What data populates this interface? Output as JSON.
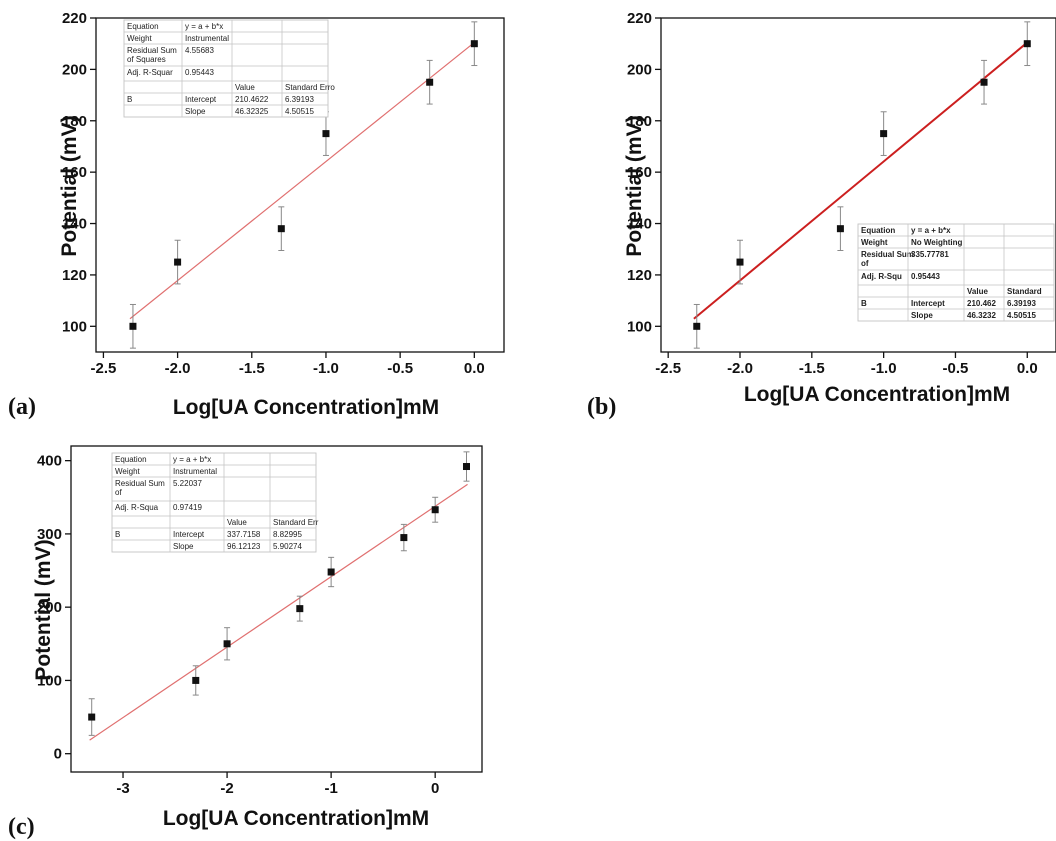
{
  "chart_data": [
    {
      "panel": "(a)",
      "type": "scatter",
      "xlabel": "Log[UA Concentration]mM",
      "ylabel": "Potential (mV)",
      "xlim": [
        -2.55,
        0.2
      ],
      "ylim": [
        90,
        220
      ],
      "xticks": [
        "-2.5",
        "-2.0",
        "-1.5",
        "-1.0",
        "-0.5",
        "0.0"
      ],
      "xtick_values": [
        -2.5,
        -2.0,
        -1.5,
        -1.0,
        -0.5,
        0.0
      ],
      "yticks": [
        "100",
        "120",
        "140",
        "160",
        "180",
        "200",
        "220"
      ],
      "ytick_values": [
        100,
        120,
        140,
        160,
        180,
        200,
        220
      ],
      "x": [
        -2.301,
        -2.0,
        -1.301,
        -1.0,
        -0.301,
        0.0
      ],
      "y": [
        100,
        125,
        138,
        175,
        195,
        210
      ],
      "error": [
        8.5,
        8.5,
        8.5,
        8.5,
        8.5,
        8.5
      ],
      "fit": {
        "intercept": 210.4622,
        "slope": 46.32325,
        "color": "#e07070",
        "width": 1.2
      },
      "table": [
        [
          "Equation",
          "y = a + b*x",
          "",
          ""
        ],
        [
          "Weight",
          "Instrumental",
          "",
          ""
        ],
        [
          "Residual Sum of Squares",
          "4.55683",
          "",
          ""
        ],
        [
          "Adj. R-Squar",
          "0.95443",
          "",
          ""
        ],
        [
          "",
          "",
          "Value",
          "Standard Erro"
        ],
        [
          "B",
          "Intercept",
          "210.4622",
          "6.39193"
        ],
        [
          "",
          "Slope",
          "46.32325",
          "4.50515"
        ]
      ],
      "table_bold": false
    },
    {
      "panel": "(b)",
      "type": "scatter",
      "xlabel": "Log[UA Concentration]mM",
      "ylabel": "Potential (mV)",
      "xlim": [
        -2.55,
        0.2
      ],
      "ylim": [
        90,
        220
      ],
      "xticks": [
        "-2.5",
        "-2.0",
        "-1.5",
        "-1.0",
        "-0.5",
        "0.0"
      ],
      "xtick_values": [
        -2.5,
        -2.0,
        -1.5,
        -1.0,
        -0.5,
        0.0
      ],
      "yticks": [
        "100",
        "120",
        "140",
        "160",
        "180",
        "200",
        "220"
      ],
      "ytick_values": [
        100,
        120,
        140,
        160,
        180,
        200,
        220
      ],
      "x": [
        -2.301,
        -2.0,
        -1.301,
        -1.0,
        -0.301,
        0.0
      ],
      "y": [
        100,
        125,
        138,
        175,
        195,
        210
      ],
      "error": [
        8.5,
        8.5,
        8.5,
        8.5,
        8.5,
        8.5
      ],
      "fit": {
        "intercept": 210.462,
        "slope": 46.3232,
        "color": "#cc1f1f",
        "width": 2
      },
      "table": [
        [
          "Equation",
          "y = a + b*x",
          "",
          ""
        ],
        [
          "Weight",
          "No Weighting",
          "",
          ""
        ],
        [
          "Residual Sum of",
          "335.77781",
          "",
          ""
        ],
        [
          "Adj. R-Squ",
          "0.95443",
          "",
          ""
        ],
        [
          "",
          "",
          "Value",
          "Standard"
        ],
        [
          "B",
          "Intercept",
          "210.462",
          "6.39193"
        ],
        [
          "",
          "Slope",
          "46.3232",
          "4.50515"
        ]
      ],
      "table_bold": true
    },
    {
      "panel": "(c)",
      "type": "scatter",
      "xlabel": "Log[UA Concentration]mM",
      "ylabel": "Potential (mV)",
      "xlim": [
        -3.5,
        0.45
      ],
      "ylim": [
        -25,
        420
      ],
      "xticks": [
        "-3",
        "-2",
        "-1",
        "0"
      ],
      "xtick_values": [
        -3,
        -2,
        -1,
        0
      ],
      "yticks": [
        "0",
        "100",
        "200",
        "300",
        "400"
      ],
      "ytick_values": [
        0,
        100,
        200,
        300,
        400
      ],
      "x": [
        -3.301,
        -2.301,
        -2.0,
        -1.301,
        -1.0,
        -0.301,
        0.0,
        0.301
      ],
      "y": [
        50,
        100,
        150,
        198,
        248,
        295,
        333,
        392
      ],
      "error": [
        25,
        20,
        22,
        17,
        20,
        18,
        17,
        20
      ],
      "fit": {
        "intercept": 337.7158,
        "slope": 96.12123,
        "color": "#e07070",
        "width": 1.2
      },
      "table": [
        [
          "Equation",
          "y = a + b*x",
          "",
          ""
        ],
        [
          "Weight",
          "Instrumental",
          "",
          ""
        ],
        [
          "Residual Sum of",
          "5.22037",
          "",
          ""
        ],
        [
          "Adj. R-Squa",
          "0.97419",
          "",
          ""
        ],
        [
          "",
          "",
          "Value",
          "Standard Err"
        ],
        [
          "B",
          "Intercept",
          "337.7158",
          "8.82995"
        ],
        [
          "",
          "Slope",
          "96.12123",
          "5.90274"
        ]
      ],
      "table_bold": false
    }
  ]
}
